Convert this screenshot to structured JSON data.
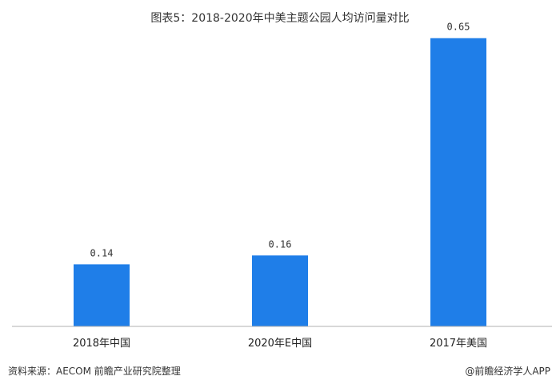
{
  "footer": {
    "source": "资料来源：AECOM 前瞻产业研究院整理",
    "credit": "@前瞻经济学人APP"
  },
  "colors": {
    "bar": "#1f7ee8",
    "axis": "#b0b0b0"
  },
  "chart_data": {
    "type": "bar",
    "title": "图表5：2018-2020年中美主题公园人均访问量对比",
    "categories": [
      "2018年中国",
      "2020年E中国",
      "2017年美国"
    ],
    "values": [
      0.14,
      0.16,
      0.65
    ],
    "value_labels": [
      "0.14",
      "0.16",
      "0.65"
    ],
    "xlabel": "",
    "ylabel": "",
    "ylim": [
      0,
      0.7
    ],
    "grid": false,
    "legend": "none"
  }
}
